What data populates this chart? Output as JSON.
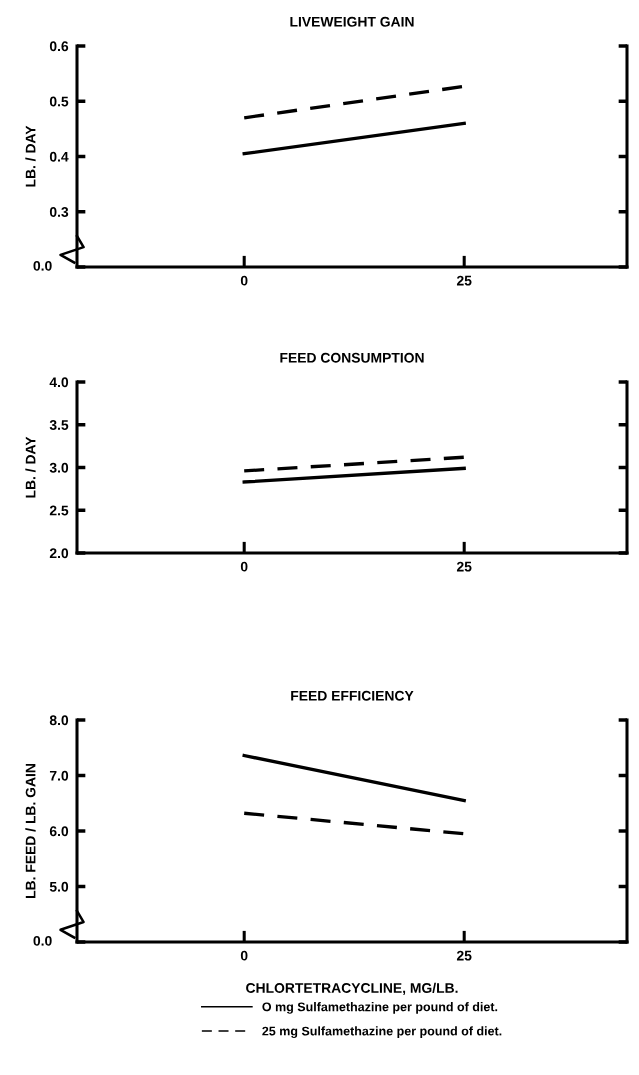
{
  "chart_data": [
    {
      "type": "line",
      "title": "LIVEWEIGHT GAIN",
      "ylabel": "LB. / DAY",
      "categories": [
        "0",
        "25"
      ],
      "ylim": [
        0.2,
        0.6
      ],
      "yticks": [
        {
          "value": 0.2,
          "label": null
        },
        0.3,
        0.4,
        0.5,
        0.6
      ],
      "annotations": [
        "0.0"
      ],
      "grid": false,
      "legend": false,
      "series": [
        {
          "color": "#000000",
          "line_style": "solid",
          "values": [
            0.405,
            0.46
          ]
        },
        {
          "color": "#000000",
          "line_style": "dashed",
          "values": [
            0.47,
            0.527
          ]
        }
      ]
    },
    {
      "type": "line",
      "title": "FEED CONSUMPTION",
      "ylabel": "LB. / DAY",
      "categories": [
        "0",
        "25"
      ],
      "ylim": [
        2.0,
        4.0
      ],
      "yticks": [
        {
          "value": 2,
          "label": "2.0"
        },
        2.5,
        {
          "value": 3,
          "label": "3.0"
        },
        3.5,
        {
          "value": 4,
          "label": "4.0"
        }
      ],
      "grid": false,
      "legend": false,
      "series": [
        {
          "color": "#000000",
          "line_style": "solid",
          "values": [
            2.83,
            2.99
          ]
        },
        {
          "color": "#000000",
          "line_style": "dashed",
          "values": [
            2.96,
            3.12
          ]
        }
      ]
    },
    {
      "type": "line",
      "title": "FEED EFFICIENCY",
      "ylabel": "LB. FEED / LB. GAIN",
      "xlabel": "CHLORTETRACYCLINE, MG/LB.",
      "categories": [
        "0",
        "25"
      ],
      "ylim": [
        4.0,
        8.0
      ],
      "yticks": [
        {
          "value": 4,
          "label": null
        },
        {
          "value": 5,
          "label": "5.0"
        },
        {
          "value": 6,
          "label": "6.0"
        },
        {
          "value": 7,
          "label": "7.0"
        },
        {
          "value": 8,
          "label": "8.0"
        }
      ],
      "annotations": [
        "0.0"
      ],
      "grid": false,
      "legend": "bottom",
      "series": [
        {
          "name": "O mg Sulfamethazine per pound of diet.",
          "color": "#000000",
          "line_style": "solid",
          "values": [
            7.36,
            6.55
          ]
        },
        {
          "name": "25 mg Sulfamethazine per pound of diet.",
          "color": "#000000",
          "line_style": "dashed",
          "values": [
            6.32,
            5.95
          ]
        }
      ]
    }
  ]
}
